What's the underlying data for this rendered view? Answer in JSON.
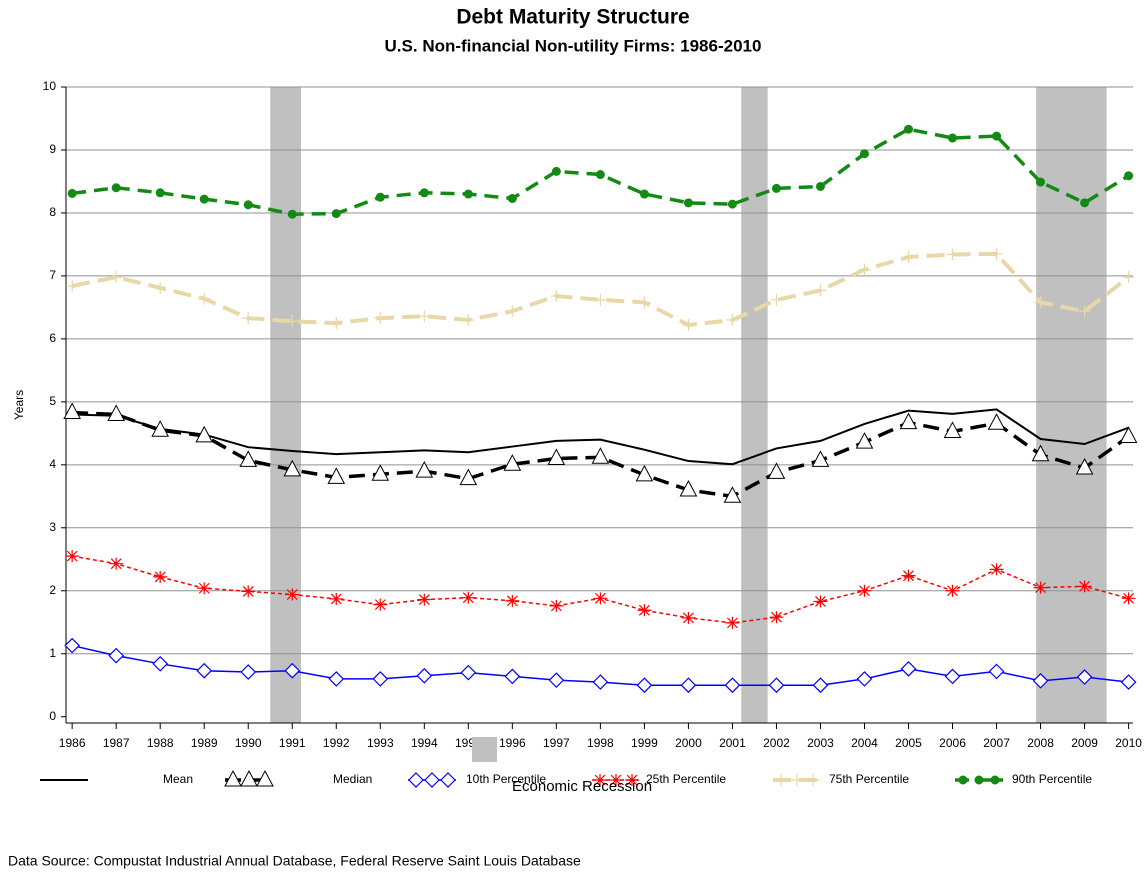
{
  "chart_data": {
    "type": "line",
    "title": "Debt Maturity Structure",
    "subtitle": "U.S. Non-financial Non-utility Firms: 1986-2010",
    "y_label": "Years",
    "source": "Data Source: Compustat Industrial Annual Database, Federal Reserve Saint Louis Database",
    "x": [
      1986,
      1987,
      1988,
      1989,
      1990,
      1991,
      1992,
      1993,
      1994,
      1995,
      1996,
      1997,
      1998,
      1999,
      2000,
      2001,
      2002,
      2003,
      2004,
      2005,
      2006,
      2007,
      2008,
      2009,
      2010
    ],
    "xlim": [
      1985.86,
      2010.1
    ],
    "xticks": [
      1986,
      1987,
      1988,
      1989,
      1990,
      1991,
      1992,
      1993,
      1994,
      1995,
      1996,
      1997,
      1998,
      1999,
      2000,
      2001,
      2002,
      2003,
      2004,
      2005,
      2006,
      2007,
      2008,
      2009,
      2010
    ],
    "ylim": [
      -0.1,
      10
    ],
    "yticks": [
      0,
      1,
      2,
      3,
      4,
      5,
      6,
      7,
      8,
      9,
      10
    ],
    "grid": true,
    "recession_label": "Economic Recession",
    "recession_color": "#c0c0c0",
    "recessions": [
      [
        1990.5,
        1991.2
      ],
      [
        2001.2,
        2001.8
      ],
      [
        2007.9,
        2009.5
      ]
    ],
    "series": [
      {
        "name": "Mean",
        "color": "#000000",
        "width": 2,
        "dash": "none",
        "marker": "none",
        "values": [
          4.8,
          4.78,
          4.57,
          4.48,
          4.28,
          4.22,
          4.17,
          4.2,
          4.23,
          4.2,
          4.29,
          4.38,
          4.4,
          4.24,
          4.06,
          4.01,
          4.26,
          4.38,
          4.65,
          4.86,
          4.81,
          4.88,
          4.41,
          4.33,
          4.59
        ]
      },
      {
        "name": "Median",
        "color": "#000000",
        "width": 3.5,
        "dash": "16 8",
        "marker": "triangle",
        "values": [
          4.83,
          4.8,
          4.55,
          4.46,
          4.07,
          3.92,
          3.8,
          3.85,
          3.9,
          3.78,
          4.01,
          4.1,
          4.12,
          3.84,
          3.6,
          3.5,
          3.88,
          4.07,
          4.36,
          4.67,
          4.53,
          4.66,
          4.16,
          3.95,
          4.45
        ]
      },
      {
        "name": "10th Percentile",
        "color": "#0000ff",
        "width": 1.5,
        "dash": "none",
        "marker": "diamond",
        "values": [
          1.13,
          0.97,
          0.84,
          0.73,
          0.71,
          0.73,
          0.6,
          0.6,
          0.65,
          0.7,
          0.64,
          0.58,
          0.55,
          0.5,
          0.5,
          0.5,
          0.5,
          0.5,
          0.6,
          0.76,
          0.64,
          0.72,
          0.57,
          0.63,
          0.55
        ]
      },
      {
        "name": "25th Percentile",
        "color": "#ff0000",
        "width": 1.5,
        "dash": "4 3",
        "marker": "star",
        "values": [
          2.55,
          2.43,
          2.22,
          2.04,
          1.99,
          1.94,
          1.87,
          1.78,
          1.86,
          1.89,
          1.84,
          1.76,
          1.88,
          1.69,
          1.57,
          1.49,
          1.58,
          1.83,
          2.0,
          2.24,
          2.0,
          2.34,
          2.05,
          2.07,
          1.88
        ]
      },
      {
        "name": "75th Percentile",
        "color": "#e8d8a8",
        "width": 4,
        "dash": "18 8",
        "marker": "plus",
        "values": [
          6.84,
          6.98,
          6.81,
          6.64,
          6.33,
          6.28,
          6.25,
          6.33,
          6.36,
          6.3,
          6.44,
          6.68,
          6.62,
          6.58,
          6.22,
          6.3,
          6.62,
          6.77,
          7.1,
          7.3,
          7.34,
          7.35,
          6.58,
          6.44,
          6.98
        ]
      },
      {
        "name": "90th Percentile",
        "color": "#138a13",
        "width": 3.5,
        "dash": "14 8",
        "marker": "circle",
        "values": [
          8.31,
          8.4,
          8.32,
          8.22,
          8.13,
          7.98,
          7.99,
          8.25,
          8.32,
          8.3,
          8.23,
          8.66,
          8.61,
          8.3,
          8.16,
          8.14,
          8.39,
          8.42,
          8.94,
          9.33,
          9.19,
          9.22,
          8.49,
          8.16,
          8.59
        ]
      }
    ]
  }
}
